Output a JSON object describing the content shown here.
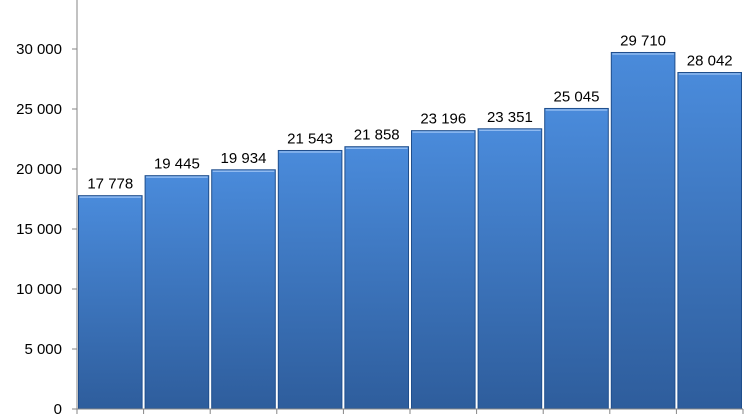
{
  "chart_data": {
    "type": "bar",
    "title": "",
    "xlabel": "",
    "ylabel": "",
    "categories": [
      "",
      "",
      "",
      "",
      "",
      "",
      "",
      "",
      "",
      ""
    ],
    "values": [
      17778,
      19445,
      19934,
      21543,
      21858,
      23196,
      23351,
      25045,
      29710,
      28042
    ],
    "data_labels": [
      "17 778",
      "19 445",
      "19 934",
      "21 543",
      "21 858",
      "23 196",
      "23 351",
      "25 045",
      "29 710",
      "28 042"
    ],
    "ylim": [
      0,
      34000
    ],
    "yticks": [
      0,
      5000,
      10000,
      15000,
      20000,
      25000,
      30000
    ],
    "ytick_labels": [
      "0",
      "5 000",
      "10 000",
      "15 000",
      "20 000",
      "25 000",
      "30 000"
    ],
    "grid": false,
    "legend": "none",
    "colors": {
      "bar_top": "#4a8bdb",
      "bar_bottom": "#2e5d9c",
      "bar_edge": "#1f4e8c",
      "axis": "#868686"
    }
  }
}
